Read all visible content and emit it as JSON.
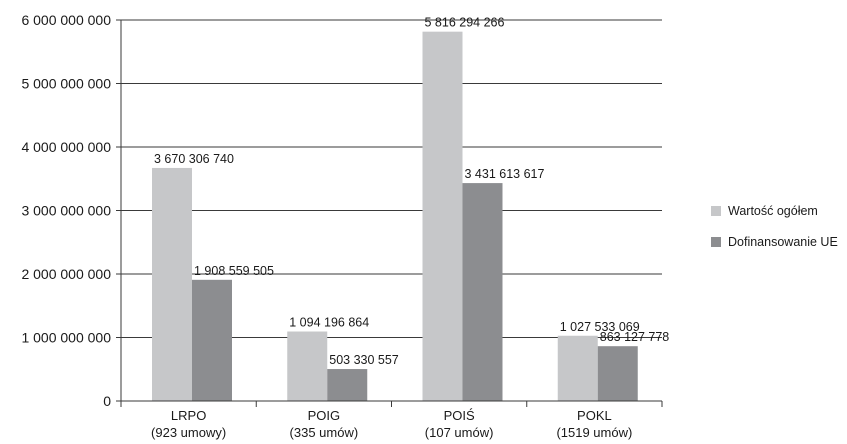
{
  "chart_data": {
    "type": "bar",
    "categories": [
      "LRPO",
      "POIG",
      "POIŚ",
      "POKL"
    ],
    "category_sublabels": [
      "(923 umowy)",
      "(335 umów)",
      "(107 umów)",
      "(1519 umów)"
    ],
    "series": [
      {
        "name": "Wartość ogółem",
        "color": "#c6c7c9",
        "values": [
          3670306740,
          1094196864,
          5816294266,
          1027533069
        ],
        "labels": [
          "3 670 306 740",
          "1 094 196 864",
          "5 816 294 266",
          "1 027 533 069"
        ]
      },
      {
        "name": "Dofinansowanie UE",
        "color": "#8c8d90",
        "values": [
          1908559505,
          503330557,
          3431613617,
          863127778
        ],
        "labels": [
          "1 908 559 505",
          "503 330 557",
          "3 431 613 617",
          "863 127 778"
        ]
      }
    ],
    "ylim": [
      0,
      6000000000
    ],
    "yticks": [
      0,
      1000000000,
      2000000000,
      3000000000,
      4000000000,
      5000000000,
      6000000000
    ],
    "ytick_labels": [
      "0",
      "1 000 000 000",
      "2 000 000 000",
      "3 000 000 000",
      "4 000 000 000",
      "5 000 000 000",
      "6 000 000 000"
    ],
    "grid": true,
    "legend_position": "right"
  }
}
